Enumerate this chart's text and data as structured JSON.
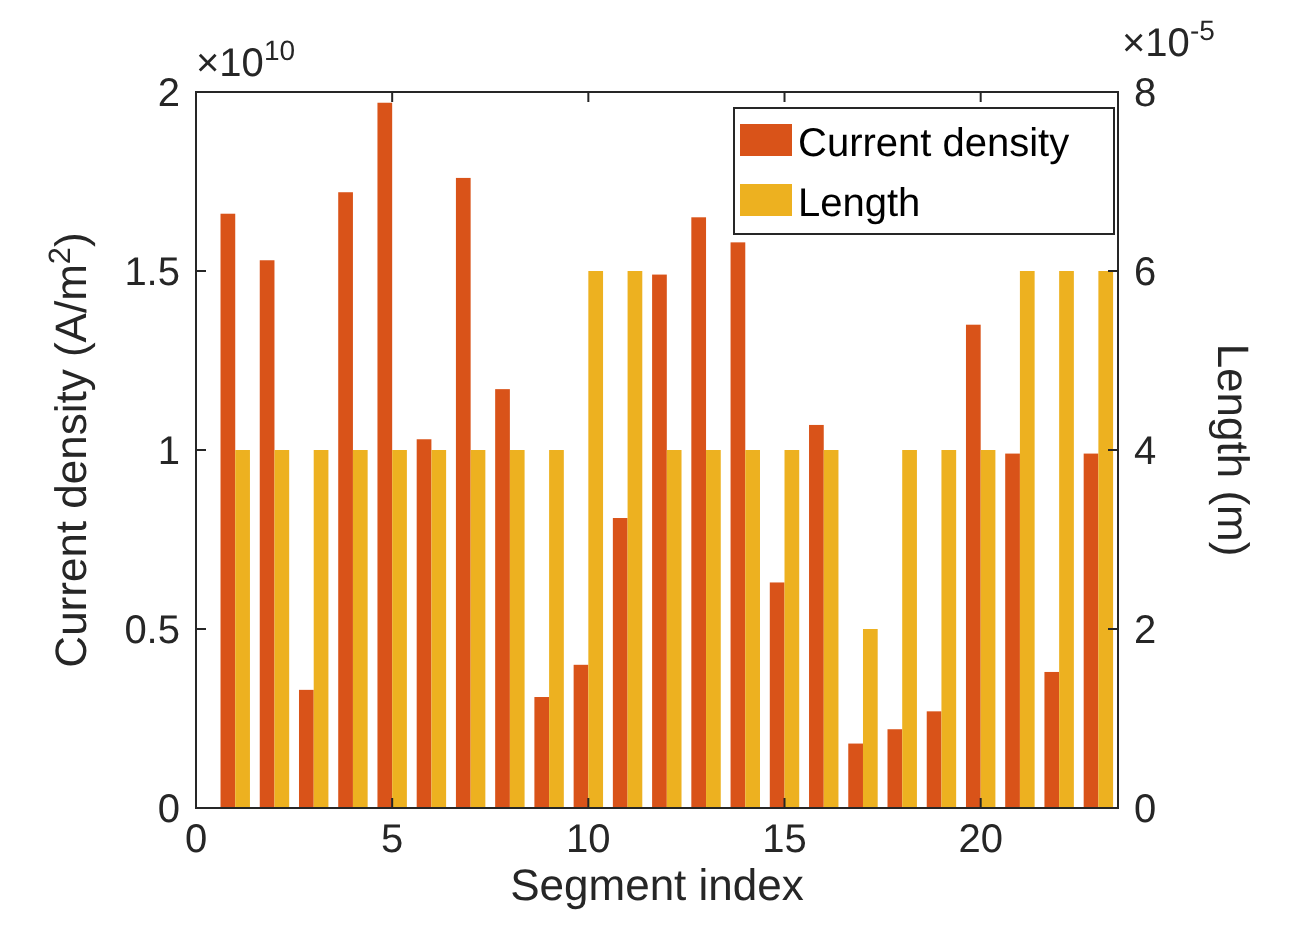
{
  "chart_data": {
    "type": "bar",
    "xlabel": "Segment index",
    "ylabel": "Current density (A/m$^{2}$)",
    "y2label": "Length (m)",
    "x": [
      1,
      2,
      3,
      4,
      5,
      6,
      7,
      8,
      9,
      10,
      11,
      12,
      13,
      14,
      15,
      16,
      17,
      18,
      19,
      20,
      21,
      22,
      23
    ],
    "series": [
      {
        "name": "Current density",
        "color": "#d95319",
        "values": [
          1.66,
          1.53,
          0.33,
          1.72,
          1.97,
          1.03,
          1.76,
          1.17,
          0.31,
          0.4,
          0.81,
          1.49,
          1.65,
          1.58,
          0.63,
          1.07,
          0.18,
          0.22,
          0.27,
          1.35,
          0.99,
          0.38,
          0.99
        ]
      },
      {
        "name": "Length",
        "color": "#edb120",
        "axis": "y2",
        "values": [
          4,
          4,
          4,
          4,
          4,
          4,
          4,
          4,
          4,
          6,
          6,
          4,
          4,
          4,
          4,
          4,
          2,
          4,
          4,
          4,
          6,
          6,
          6
        ]
      }
    ],
    "xlim": [
      0,
      23.5
    ],
    "xticks": [
      0,
      5,
      10,
      15,
      20
    ],
    "ylim": [
      0,
      2
    ],
    "yticks": [
      0,
      0.5,
      1,
      1.5,
      2
    ],
    "y2lim": [
      0,
      8
    ],
    "y2ticks": [
      0,
      2,
      4,
      6,
      8
    ],
    "annotations": [
      "×10$^{10}$",
      "×10$^{-5}$"
    ],
    "legend": "top right",
    "grid": false
  }
}
